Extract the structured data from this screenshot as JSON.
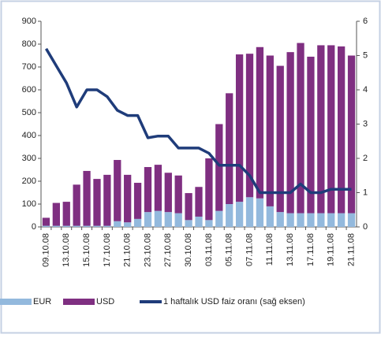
{
  "chart_data": {
    "type": "bar",
    "stacked": true,
    "categories": [
      "09.10.08",
      null,
      "13.10.08",
      null,
      "15.10.08",
      null,
      "17.10.08",
      null,
      "21.10.08",
      null,
      "23.10.08",
      null,
      "27.10.08",
      null,
      "30.10.08",
      null,
      "03.11.08",
      null,
      "05.11.08",
      null,
      "07.11.08",
      null,
      "11.11.08",
      null,
      "13.11.08",
      null,
      "17.11.08",
      null,
      "19.11.08",
      null,
      "21.11.08"
    ],
    "series": [
      {
        "name": "EUR",
        "color": "#93b9dd",
        "values": [
          5,
          5,
          5,
          5,
          5,
          5,
          5,
          25,
          20,
          35,
          65,
          70,
          65,
          60,
          30,
          45,
          30,
          70,
          100,
          110,
          130,
          125,
          90,
          65,
          60,
          60,
          60,
          60,
          60,
          60,
          60
        ]
      },
      {
        "name": "USD",
        "color": "#7f2f81",
        "values": [
          35,
          100,
          105,
          180,
          240,
          205,
          223,
          268,
          208,
          158,
          197,
          202,
          172,
          165,
          118,
          130,
          270,
          380,
          485,
          645,
          628,
          662,
          660,
          640,
          705,
          745,
          685,
          735,
          735,
          730,
          690
        ]
      },
      {
        "name": "1 haftalık USD faiz oranı (sağ eksen)",
        "type": "line",
        "axis": "y2",
        "color": "#1f3c7a",
        "values": [
          5.2,
          4.7,
          4.2,
          3.5,
          4.0,
          4.0,
          3.8,
          3.4,
          3.25,
          3.25,
          2.6,
          2.65,
          2.65,
          2.3,
          2.3,
          2.3,
          2.15,
          1.8,
          1.8,
          1.8,
          1.5,
          1.0,
          1.0,
          1.0,
          1.0,
          1.25,
          1.0,
          1.0,
          1.1,
          1.1,
          1.1
        ]
      }
    ],
    "ylim": [
      0,
      900
    ],
    "yticks": [
      0,
      100,
      200,
      300,
      400,
      500,
      600,
      700,
      800,
      900
    ],
    "y2lim": [
      0,
      6
    ],
    "y2ticks": [
      0,
      1,
      2,
      3,
      4,
      5,
      6
    ],
    "grid": false,
    "legend": "bottom"
  }
}
